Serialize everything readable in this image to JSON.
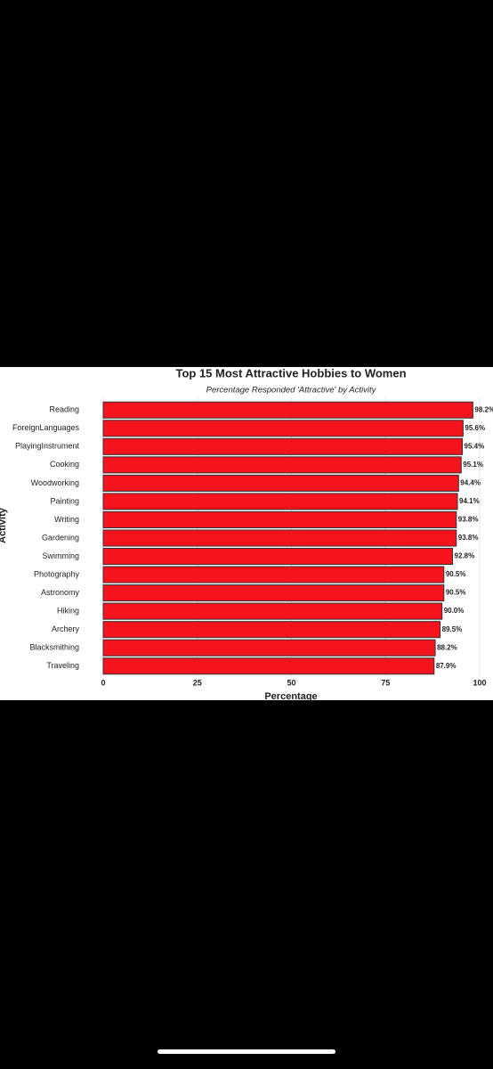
{
  "chart_data": {
    "type": "bar",
    "orientation": "horizontal",
    "title": "Top 15 Most Attractive Hobbies to Women",
    "subtitle": "Percentage Responded 'Attractive' by Activity",
    "x_label": "Percentage",
    "y_label": "Activity",
    "categories": [
      "Reading",
      "ForeignLanguages",
      "PlayingInstrument",
      "Cooking",
      "Woodworking",
      "Painting",
      "Writing",
      "Gardening",
      "Swimming",
      "Photography",
      "Astronomy",
      "Hiking",
      "Archery",
      "Blacksmithing",
      "Traveling"
    ],
    "values": [
      98.2,
      95.6,
      95.4,
      95.1,
      94.4,
      94.1,
      93.8,
      93.8,
      92.8,
      90.5,
      90.5,
      90.0,
      89.5,
      88.2,
      87.9
    ],
    "value_labels": [
      "98.2%",
      "95.6%",
      "95.4%",
      "95.1%",
      "94.4%",
      "94.1%",
      "93.8%",
      "93.8%",
      "92.8%",
      "90.5%",
      "90.5%",
      "90.0%",
      "89.5%",
      "88.2%",
      "87.9%"
    ],
    "color": "#f5141e",
    "xlim": [
      0,
      100
    ],
    "xticks": [
      0,
      25,
      50,
      75,
      100
    ],
    "grid": true
  }
}
